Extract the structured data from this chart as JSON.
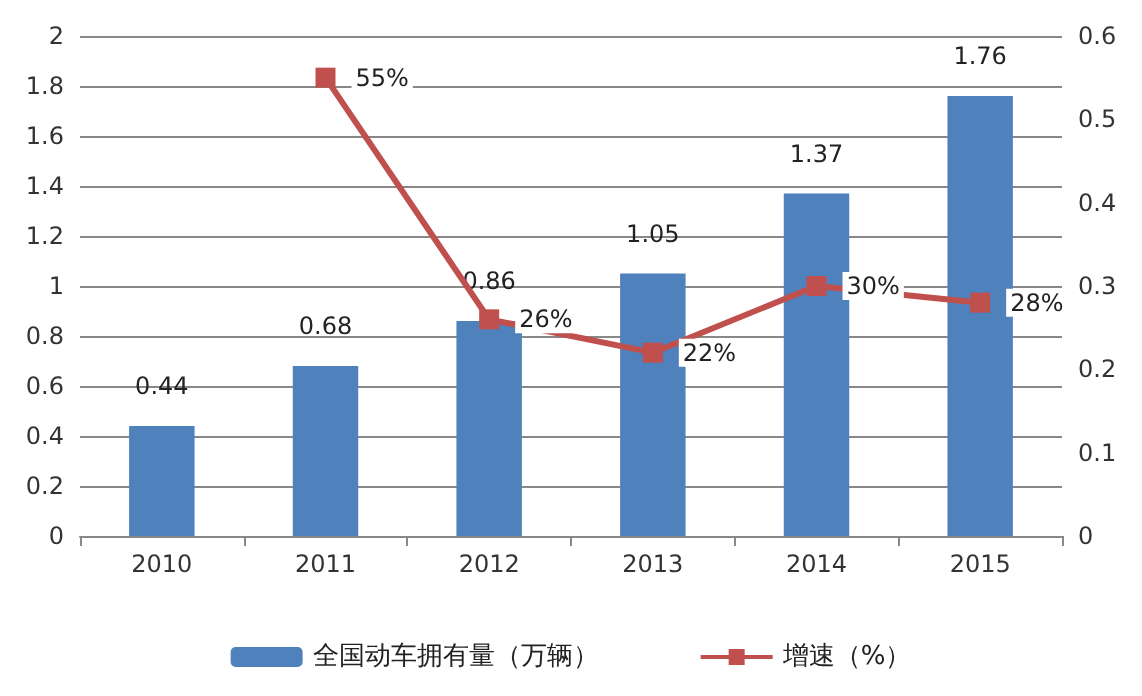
{
  "chart_data": {
    "type": "bar",
    "categories": [
      "2010",
      "2011",
      "2012",
      "2013",
      "2014",
      "2015"
    ],
    "series": [
      {
        "name": "全国动车拥有量（万辆）",
        "color": "#4f81bd",
        "values": [
          0.44,
          0.68,
          0.86,
          1.05,
          1.37,
          1.76
        ],
        "value_labels": [
          "0.44",
          "0.68",
          "0.86",
          "1.05",
          "1.37",
          "1.76"
        ]
      },
      {
        "name": "增速（%）",
        "type": "line",
        "axis": "y2",
        "color": "#c0504d",
        "marker": "square",
        "values": [
          null,
          0.55,
          0.26,
          0.22,
          0.3,
          0.28
        ],
        "value_labels": [
          null,
          "55%",
          "26%",
          "22%",
          "30%",
          "28%"
        ]
      }
    ],
    "ylim": [
      0,
      2
    ],
    "yticks": [
      0,
      0.2,
      0.4,
      0.6,
      0.8,
      1,
      1.2,
      1.4,
      1.6,
      1.8,
      2
    ],
    "y2lim": [
      0,
      0.6
    ],
    "y2ticks": [
      0,
      0.1,
      0.2,
      0.3,
      0.4,
      0.5,
      0.6
    ],
    "grid": "y",
    "legend": "bottom"
  }
}
